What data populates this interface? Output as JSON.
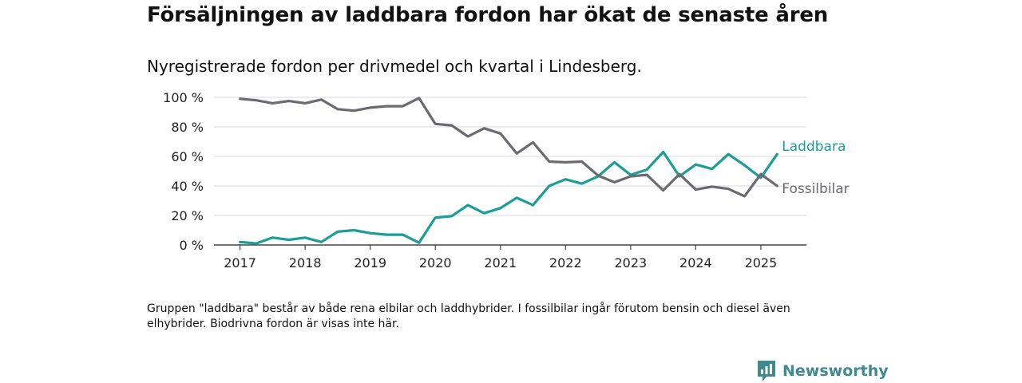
{
  "title": "Försäljningen av laddbara fordon har ökat de senaste åren",
  "subtitle": "Nyregistrerade fordon per drivmedel och kvartal i Lindesberg.",
  "footnote": "Gruppen \"laddbara\" består av både rena elbilar och laddhybrider. I fossilbilar ingår förutom bensin och diesel även elhybrider. Biodrivna fordon är visas inte här.",
  "brand": {
    "name": "Newsworthy",
    "icon": "newsworthy-logo-icon",
    "color": "#3d8a8f"
  },
  "chart_data": {
    "type": "line",
    "title": "Försäljningen av laddbara fordon har ökat de senaste åren",
    "subtitle": "Nyregistrerade fordon per drivmedel och kvartal i Lindesberg.",
    "xlabel": "",
    "ylabel": "",
    "ylim": [
      0,
      100
    ],
    "yticks": [
      0,
      20,
      40,
      60,
      80,
      100
    ],
    "ytick_labels": [
      "0 %",
      "20 %",
      "40 %",
      "60 %",
      "80 %",
      "100 %"
    ],
    "xticks": [
      2017,
      2018,
      2019,
      2020,
      2021,
      2022,
      2023,
      2024,
      2025
    ],
    "xtick_labels": [
      "2017",
      "2018",
      "2019",
      "2020",
      "2021",
      "2022",
      "2023",
      "2024",
      "2025"
    ],
    "xlim": [
      2016.6,
      2025.7
    ],
    "grid": true,
    "legend": "end-of-line labels",
    "x": [
      2017.0,
      2017.25,
      2017.5,
      2017.75,
      2018.0,
      2018.25,
      2018.5,
      2018.75,
      2019.0,
      2019.25,
      2019.5,
      2019.75,
      2020.0,
      2020.25,
      2020.5,
      2020.75,
      2021.0,
      2021.25,
      2021.5,
      2021.75,
      2022.0,
      2022.25,
      2022.5,
      2022.75,
      2023.0,
      2023.25,
      2023.5,
      2023.75,
      2024.0,
      2024.25,
      2024.5,
      2024.75,
      2025.0,
      2025.25
    ],
    "series": [
      {
        "name": "Laddbara",
        "color": "#1a9e96",
        "values": [
          2,
          1,
          5,
          3.5,
          5,
          2,
          9,
          10,
          8,
          7,
          7,
          1.5,
          18.5,
          19.5,
          27,
          21.5,
          25,
          32,
          27,
          40,
          44.5,
          41.5,
          46.5,
          56,
          47.5,
          51,
          63,
          46.5,
          54.5,
          51.5,
          61.5,
          54,
          45.5,
          61.5
        ]
      },
      {
        "name": "Fossilbilar",
        "color": "#6b6a70",
        "values": [
          99,
          98,
          96,
          97.5,
          96,
          98.5,
          92,
          91,
          93,
          94,
          94,
          99.5,
          82,
          81,
          73.5,
          79,
          75.5,
          62,
          69.5,
          56.5,
          56,
          56.5,
          47,
          42.5,
          46.5,
          47.5,
          37,
          48,
          37.5,
          39.5,
          38,
          33,
          48,
          40
        ]
      }
    ]
  }
}
